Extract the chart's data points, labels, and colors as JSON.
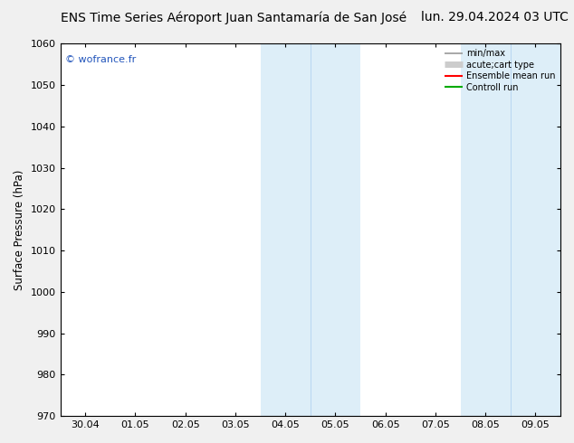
{
  "title_left": "ENS Time Series Aéroport Juan Santamaría de San José",
  "title_right": "lun. 29.04.2024 03 UTC",
  "ylabel": "Surface Pressure (hPa)",
  "ylim": [
    970,
    1060
  ],
  "yticks": [
    970,
    980,
    990,
    1000,
    1010,
    1020,
    1030,
    1040,
    1050,
    1060
  ],
  "xlim_start": -0.5,
  "xlim_end": 9.5,
  "xtick_positions": [
    0,
    1,
    2,
    3,
    4,
    5,
    6,
    7,
    8,
    9
  ],
  "xtick_labels": [
    "30.04",
    "01.05",
    "02.05",
    "03.05",
    "04.05",
    "05.05",
    "06.05",
    "07.05",
    "08.05",
    "09.05"
  ],
  "shade_bands": [
    {
      "xmin": 3.5,
      "xmax": 4.5,
      "color": "#ddeef8"
    },
    {
      "xmin": 4.5,
      "xmax": 5.5,
      "color": "#ddeef8"
    },
    {
      "xmin": 7.5,
      "xmax": 8.5,
      "color": "#ddeef8"
    },
    {
      "xmin": 8.5,
      "xmax": 9.5,
      "color": "#ddeef8"
    }
  ],
  "band_dividers": [
    4.5,
    8.5
  ],
  "watermark": "© wofrance.fr",
  "watermark_color": "#2255bb",
  "background_color": "#f0f0f0",
  "plot_bg_color": "#ffffff",
  "legend_entries": [
    {
      "label": "min/max",
      "color": "#999999",
      "lw": 1.2
    },
    {
      "label": "acute;cart type",
      "color": "#cccccc",
      "lw": 5
    },
    {
      "label": "Ensemble mean run",
      "color": "#ff0000",
      "lw": 1.5
    },
    {
      "label": "Controll run",
      "color": "#00aa00",
      "lw": 1.5
    }
  ],
  "title_fontsize": 10,
  "tick_fontsize": 8,
  "ylabel_fontsize": 8.5
}
